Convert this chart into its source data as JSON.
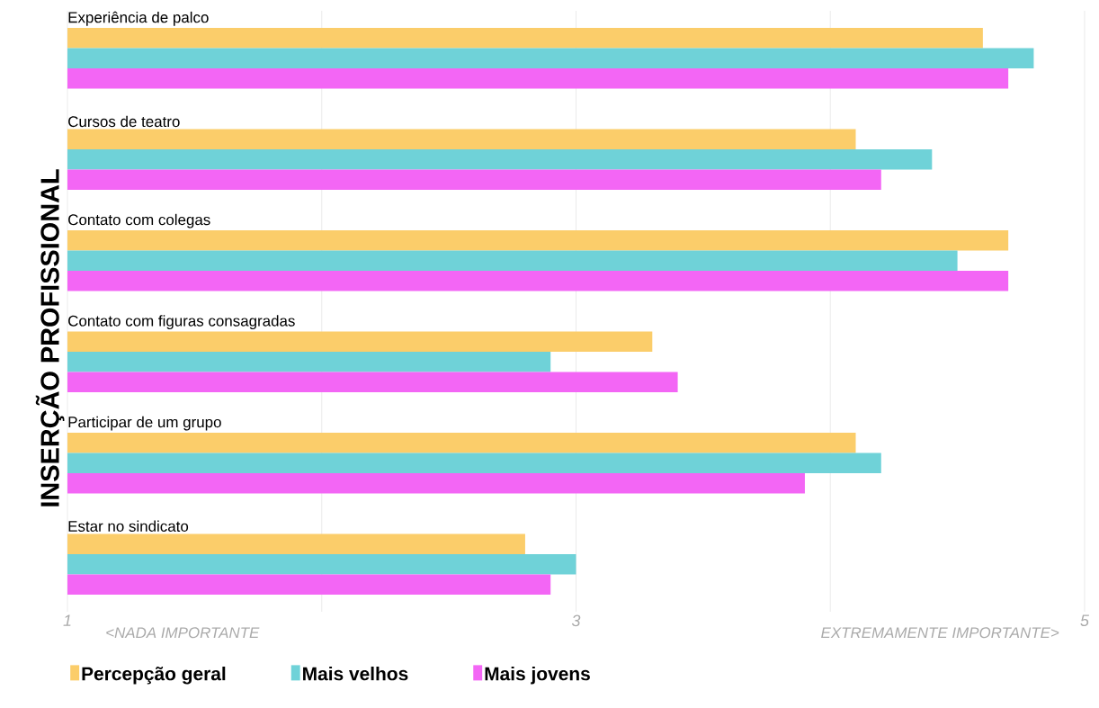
{
  "chart_data": {
    "type": "bar",
    "orientation": "horizontal",
    "ylabel": "INSERÇÃO PROFISSIONAL",
    "categories": [
      "Experiência de palco",
      "Cursos de teatro",
      "Contato com colegas",
      "Contato com figuras consagradas",
      "Participar de um grupo",
      "Estar no sindicato"
    ],
    "series": [
      {
        "name": "Percepção geral",
        "color": "#fbcd6a",
        "values": [
          4.6,
          4.1,
          4.7,
          3.3,
          4.1,
          2.8
        ]
      },
      {
        "name": "Mais velhos",
        "color": "#6fd2d8",
        "values": [
          4.8,
          4.4,
          4.5,
          2.9,
          4.2,
          3.0
        ]
      },
      {
        "name": "Mais jovens",
        "color": "#f366f5",
        "values": [
          4.7,
          4.2,
          4.7,
          3.4,
          3.9,
          2.9
        ]
      }
    ],
    "xlim": [
      1,
      5
    ],
    "xticks": [
      1,
      {
        "value": 2,
        "label": null
      },
      3,
      {
        "value": 4,
        "label": null
      },
      5
    ],
    "annotations": [
      "<NADA IMPORTANTE",
      "EXTREMAMENTE IMPORTANTE>"
    ],
    "grid": "x",
    "legend": "bottom"
  }
}
